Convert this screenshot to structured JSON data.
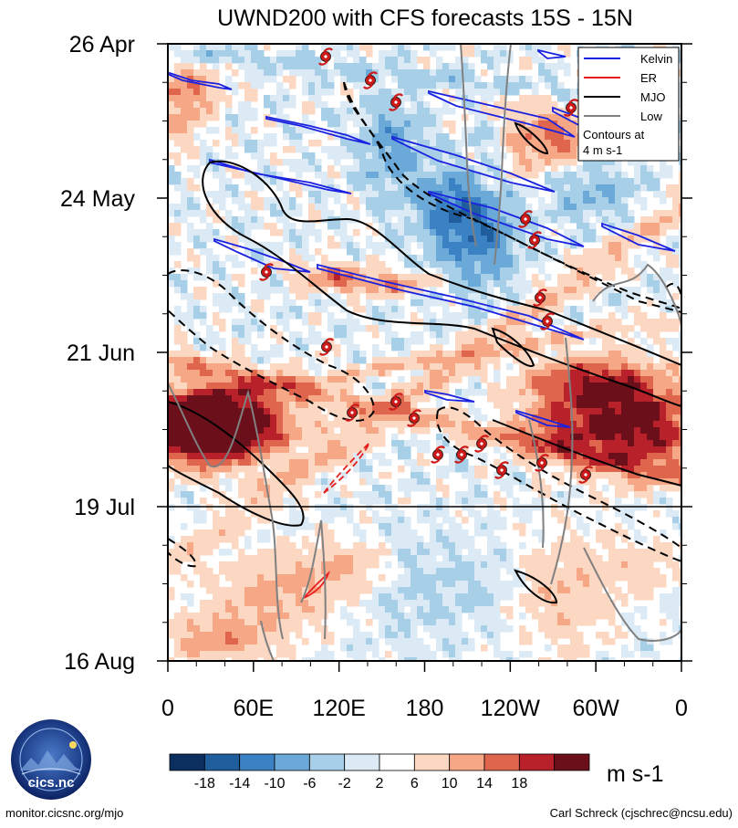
{
  "chart_data": {
    "type": "heatmap",
    "title": "UWND200 with CFS forecasts  15S - 15N",
    "y_ticks": [
      "26 Apr",
      "24 May",
      "21 Jun",
      "19 Jul",
      "16 Aug"
    ],
    "x_ticks": [
      "0",
      "60E",
      "120E",
      "180",
      "120W",
      "60W",
      "0"
    ],
    "colorbar": {
      "unit": "m s-1",
      "labels": [
        "-18",
        "-14",
        "-10",
        "-6",
        "-2",
        "2",
        "6",
        "10",
        "14",
        "18"
      ],
      "colors": [
        "#0b2f5e",
        "#1f5d9c",
        "#3b82c4",
        "#6aa9d8",
        "#a8cfe8",
        "#dbeaf4",
        "#ffffff",
        "#fcd7c2",
        "#f6a785",
        "#e0654d",
        "#b8202a",
        "#6b0f1a"
      ]
    },
    "legend": {
      "entries": [
        {
          "label": "Kelvin",
          "color": "#1a22e0"
        },
        {
          "label": "ER",
          "color": "#e81e1e"
        },
        {
          "label": "MJO",
          "color": "#000000"
        },
        {
          "label": "Low",
          "color": "#808080"
        }
      ],
      "note_line1": "Contours at",
      "note_line2": "4 m s-1"
    },
    "forecast_start": "19 Jul"
  },
  "footer": {
    "website": "monitor.cicsnc.org/mjo",
    "credit": "Carl Schreck (cjschrec@ncsu.edu)",
    "logo_text": "cics.nc",
    "logo_ring": "Cooperative Institute for Climate and Satellites"
  }
}
